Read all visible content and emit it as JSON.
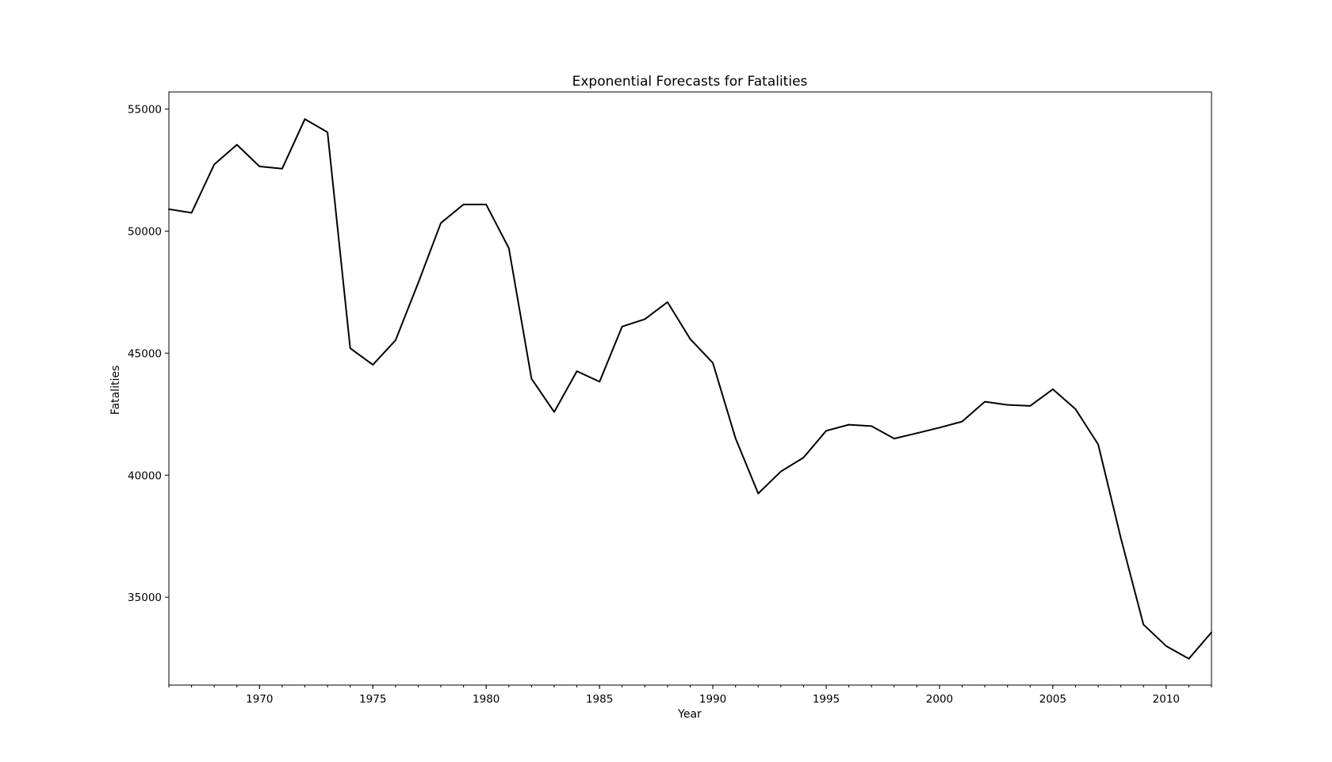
{
  "chart_data": {
    "type": "line",
    "title": "Exponential Forecasts for Fatalities",
    "xlabel": "Year",
    "ylabel": "Fatalities",
    "xlim": [
      1966,
      2012
    ],
    "ylim": [
      31400,
      55700
    ],
    "xticks": [
      1970,
      1975,
      1980,
      1985,
      1990,
      1995,
      2000,
      2005,
      2010
    ],
    "yticks": [
      35000,
      40000,
      45000,
      50000,
      55000
    ],
    "grid": false,
    "legend": "none",
    "line_color": "#000000",
    "series": [
      {
        "x": [
          1966,
          1967,
          1968,
          1969,
          1970,
          1971,
          1972,
          1973,
          1974,
          1975,
          1976,
          1977,
          1978,
          1979,
          1980,
          1981,
          1982,
          1983,
          1984,
          1985,
          1986,
          1987,
          1988,
          1989,
          1990,
          1991,
          1992,
          1993,
          1994,
          1995,
          1996,
          1997,
          1998,
          1999,
          2000,
          2001,
          2002,
          2003,
          2004,
          2005,
          2006,
          2007,
          2008,
          2009,
          2010,
          2011,
          2012
        ],
        "values": [
          50900,
          50750,
          52730,
          53540,
          52650,
          52560,
          54590,
          54050,
          45200,
          44520,
          45530,
          47880,
          50330,
          51090,
          51090,
          49300,
          43950,
          42590,
          44260,
          43830,
          46090,
          46390,
          47090,
          45580,
          44600,
          41510,
          39250,
          40150,
          40720,
          41820,
          42070,
          42010,
          41500,
          41720,
          41950,
          42200,
          43010,
          42880,
          42840,
          43520,
          42710,
          41260,
          37420,
          33880,
          33000,
          32480,
          33560
        ]
      }
    ]
  }
}
